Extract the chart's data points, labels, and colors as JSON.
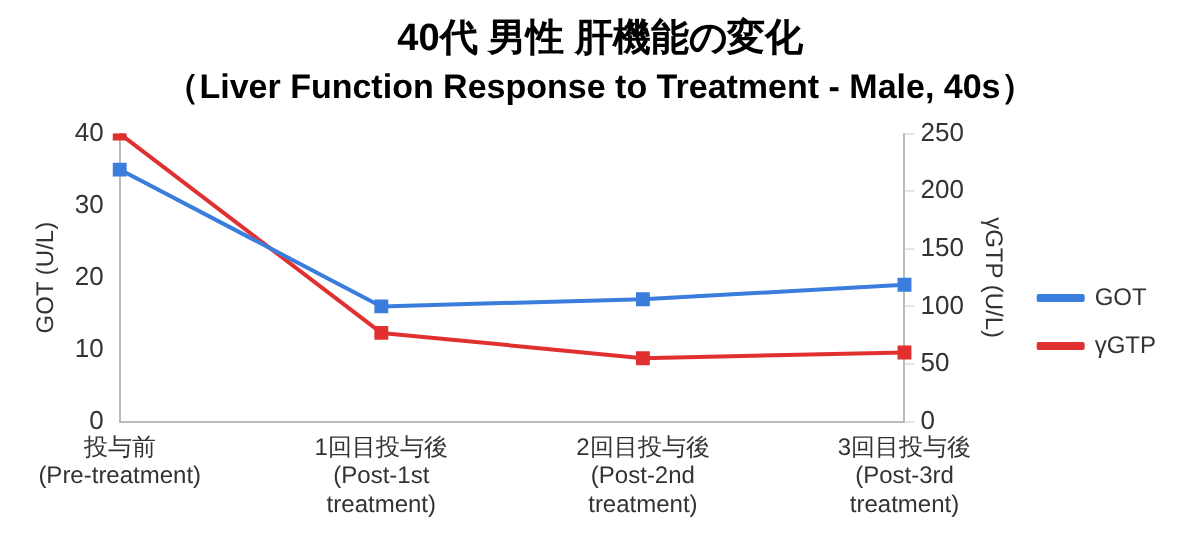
{
  "chart_data": {
    "type": "line",
    "title": "40代 男性 肝機能の変化",
    "subtitle": "（Liver Function Response to Treatment - Male, 40s）",
    "ylabel": "GOT (U/L)",
    "y2label": "γGTP (U/L)",
    "categories": [
      "投与前\n(Pre-treatment)",
      "1回目投与後\n(Post-1st\ntreatment)",
      "2回目投与後\n(Post-2nd\ntreatment)",
      "3回目投与後\n(Post-3rd\ntreatment)"
    ],
    "series": [
      {
        "name": "GOT",
        "color": "#3b7ddd",
        "values": [
          35,
          16,
          17,
          19
        ]
      },
      {
        "name": "γGTP",
        "color": "#e03030",
        "values": [
          250,
          77,
          55,
          60
        ],
        "axis": "y2"
      }
    ],
    "ylim": [
      0,
      40
    ],
    "yticks": [
      0,
      10,
      20,
      30,
      40
    ],
    "y2lim": [
      0,
      250
    ],
    "y2ticks": [
      0,
      50,
      100,
      150,
      200,
      250
    ],
    "grid": false,
    "legend": "right",
    "marker": "square",
    "line_style": "solid"
  }
}
